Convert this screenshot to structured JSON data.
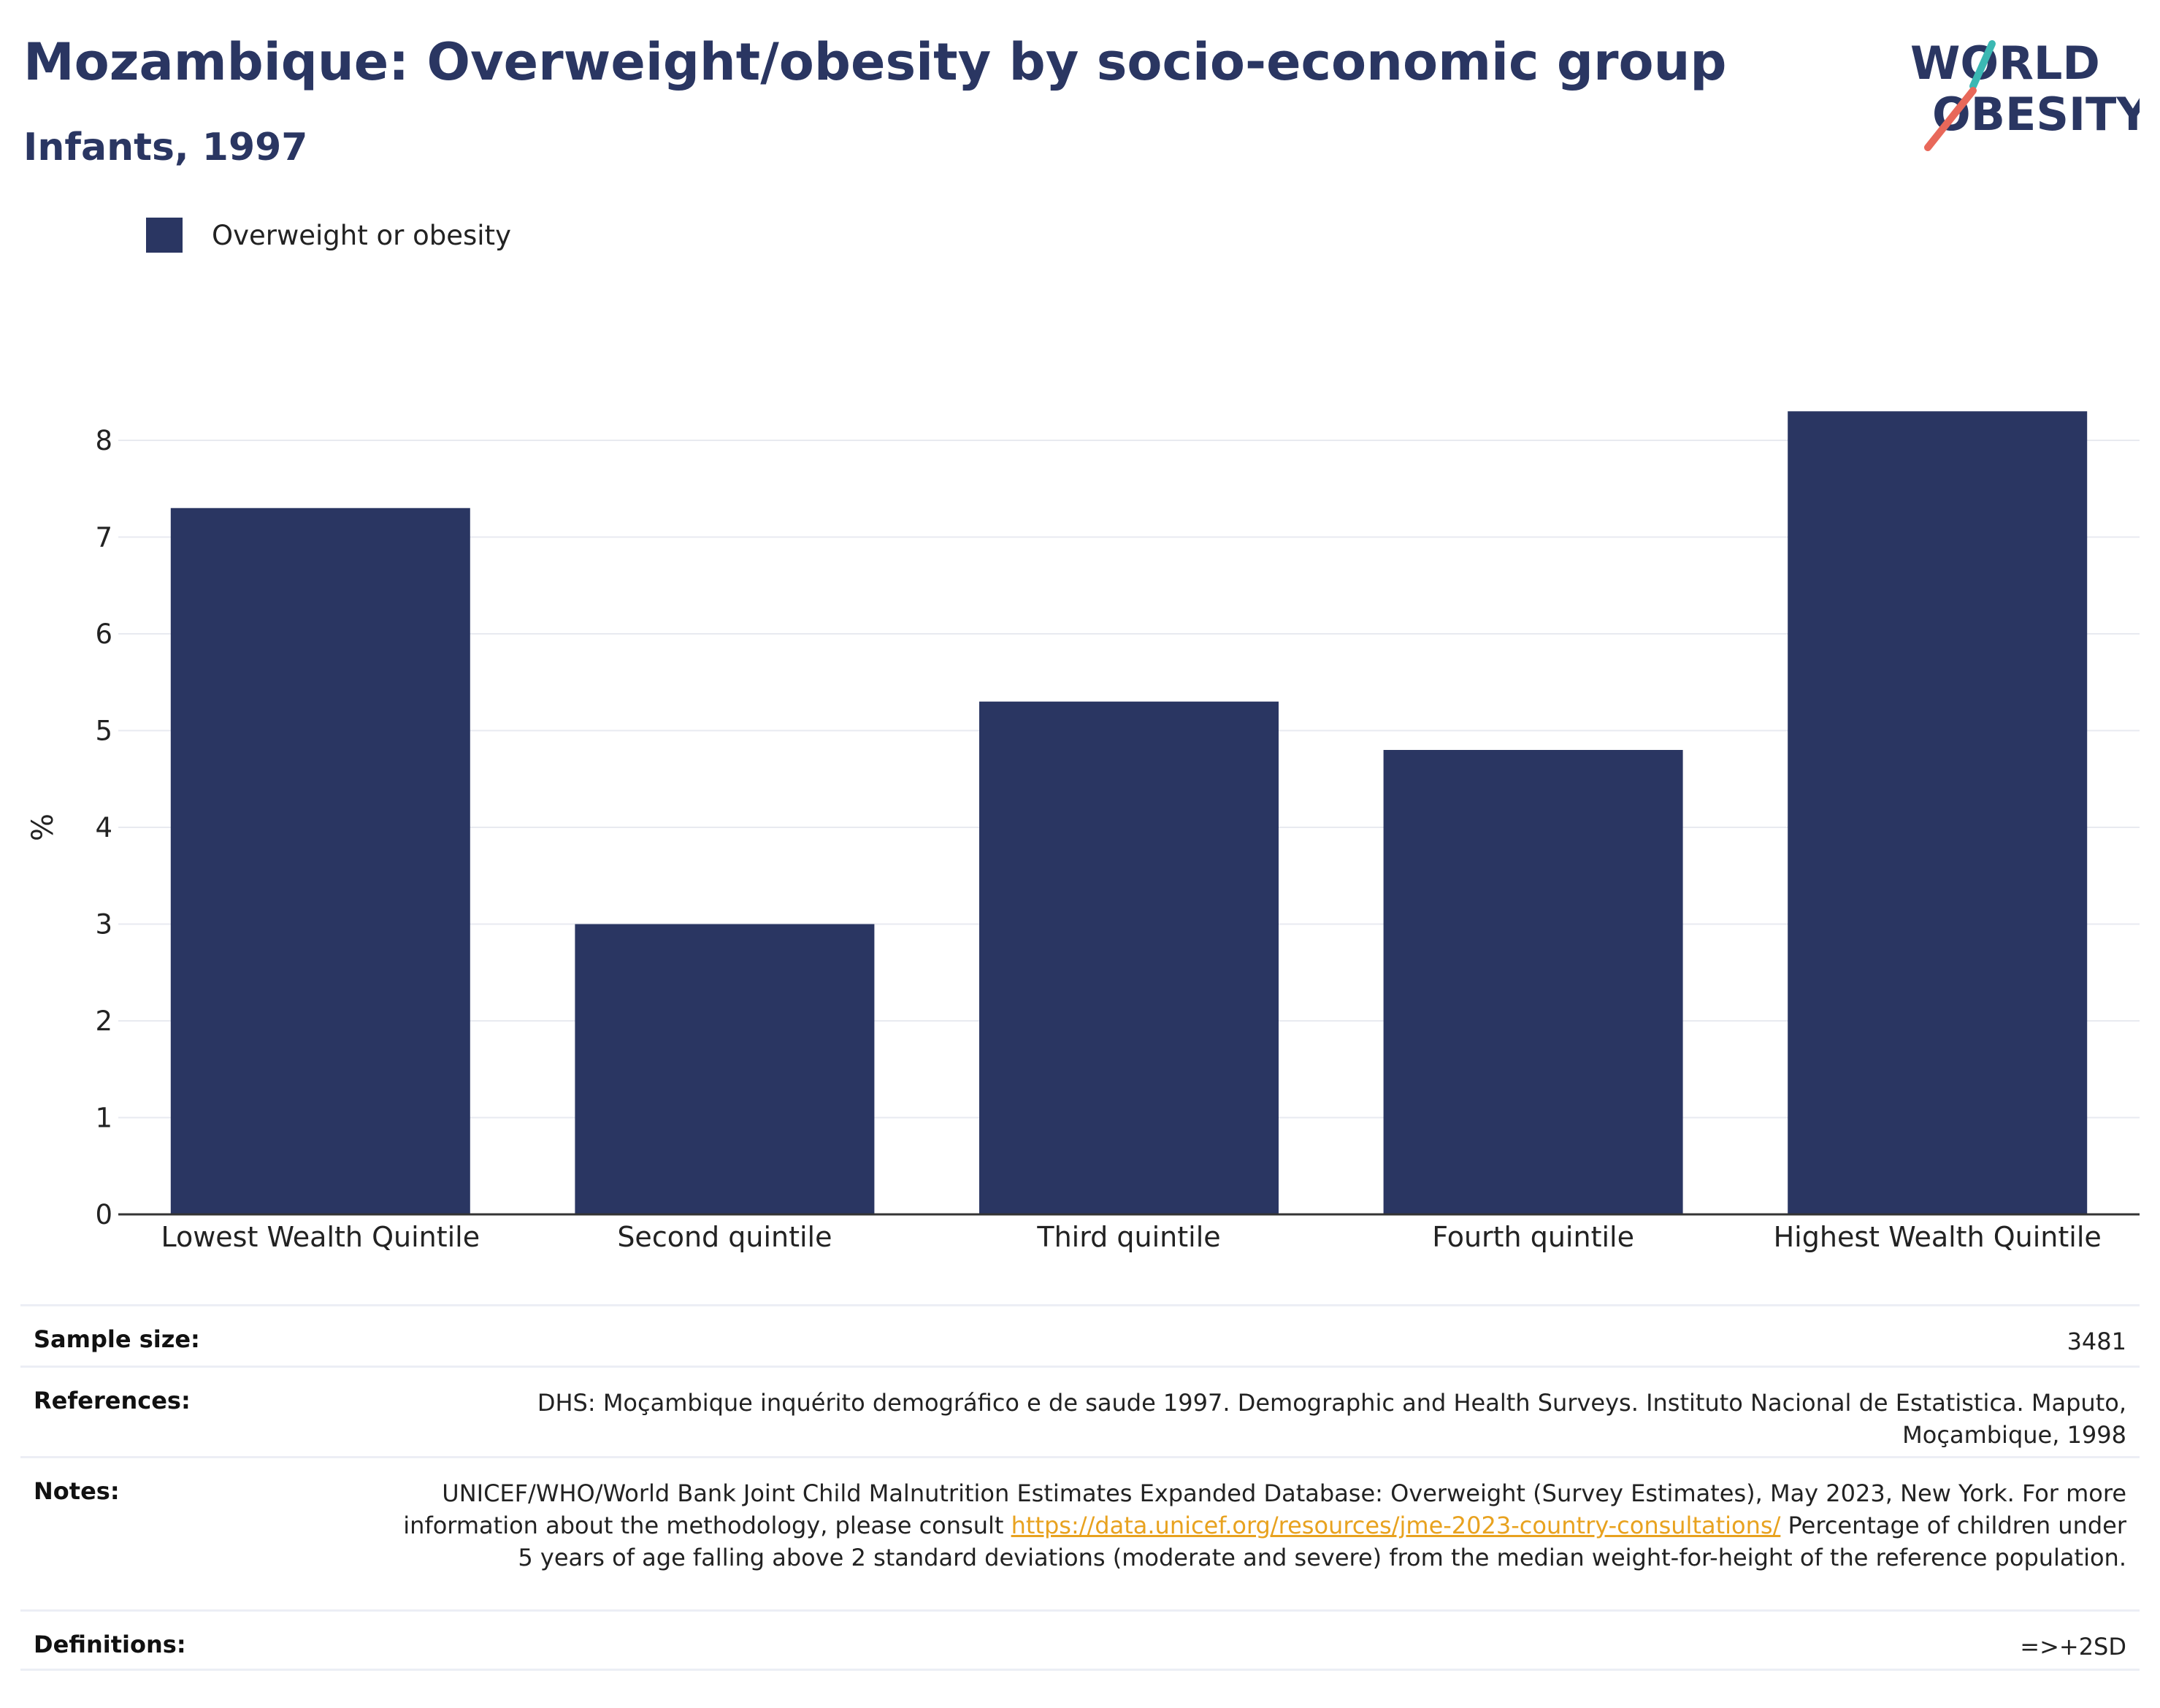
{
  "header": {
    "title": "Mozambique: Overweight/obesity by socio-economic group",
    "subtitle": "Infants, 1997"
  },
  "logo": {
    "line1": "WORLD",
    "line2": "OBESITY"
  },
  "colors": {
    "bar": "#2a3662",
    "title": "#2a3662",
    "grid": "#e8eaf0",
    "axis": "#333333",
    "link": "#e8a21f"
  },
  "chart_data": {
    "type": "bar",
    "title": "Mozambique: Overweight/obesity by socio-economic group",
    "subtitle": "Infants, 1997",
    "categories": [
      "Lowest Wealth Quintile",
      "Second quintile",
      "Third quintile",
      "Fourth quintile",
      "Highest Wealth Quintile"
    ],
    "series": [
      {
        "name": "Overweight or obesity",
        "values": [
          7.3,
          3.0,
          5.3,
          4.8,
          8.3
        ]
      }
    ],
    "ylabel": "%",
    "xlabel": "",
    "ylim": [
      0,
      9
    ],
    "yticks": [
      0,
      1,
      2,
      3,
      4,
      5,
      6,
      7,
      8
    ],
    "grid": true,
    "legend": "top-left"
  },
  "info": {
    "sample_size_label": "Sample size:",
    "sample_size_value": "3481",
    "references_label": "References:",
    "references_value": "DHS: Moçambique inquérito demográfico e de saude 1997. Demographic and Health Surveys. Instituto Nacional de Estatistica. Maputo, Moçambique, 1998",
    "notes_label": "Notes:",
    "notes_text_before": "UNICEF/WHO/World Bank Joint Child Malnutrition Estimates Expanded Database: Overweight (Survey Estimates), May 2023, New York. For more information about the methodology, please consult ",
    "notes_link": "https://data.unicef.org/resources/jme-2023-country-consultations/",
    "notes_text_after": " Percentage of children under 5 years of age falling above 2 standard deviations (moderate and severe) from the median weight-for-height of the reference population.",
    "definitions_label": "Definitions:",
    "definitions_value": "=>+2SD"
  }
}
